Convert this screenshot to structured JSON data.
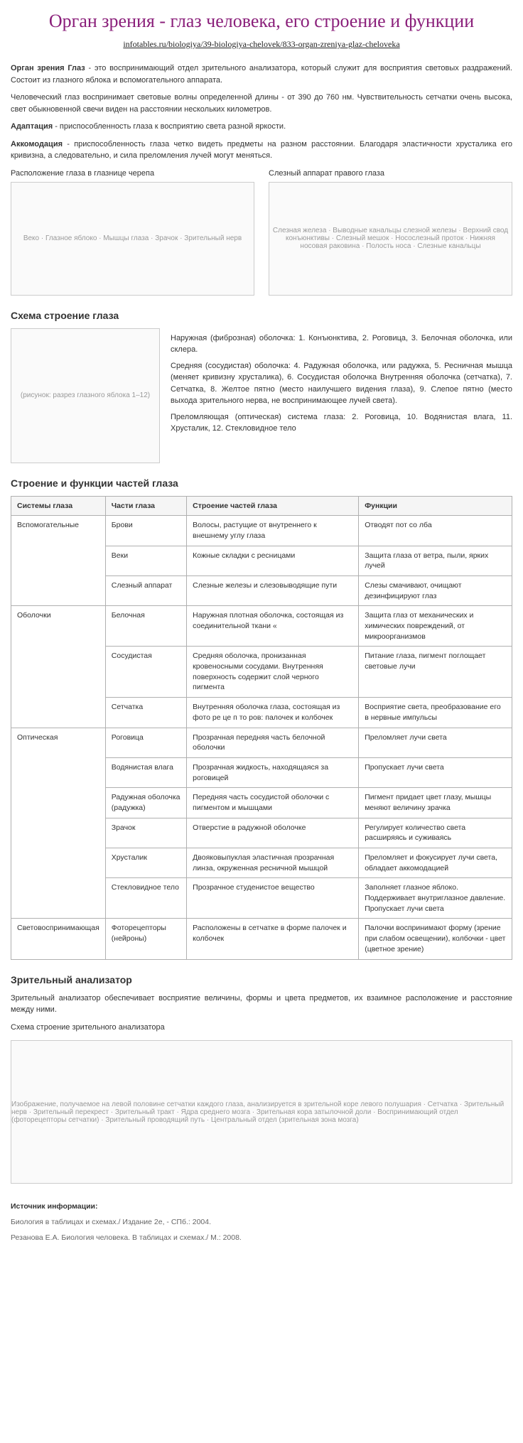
{
  "title": "Орган зрения - глаз человека, его строение и функции",
  "url": "infotables.ru/biologiya/39-biologiya-chelovek/833-organ-zreniya-glaz-cheloveka",
  "intro": {
    "p1b": "Орган зрения Глаз",
    "p1": " - это воспринимающий отдел зрительного анализатора, который служит для восприятия световых раздражений. Состоит из глазного яблока и вспомогательного аппарата.",
    "p2": "Человеческий глаз воспринимает световые волны определенной длины - от 390 до 760 нм. Чувствительность сетчатки очень высока, свет обыкновенной свечи виден на расстоянии нескольких километров.",
    "p3b": "Адаптация",
    "p3": " - приспособленность глаза к восприятию света разной яркости.",
    "p4b": "Аккомодация",
    "p4": " - приспособленность глаза четко видеть предметы на разном расстоянии. Благодаря эластичности хрусталика его кривизна, а следовательно, и сила преломления лучей могут меняться."
  },
  "figs": {
    "cap1": "Расположение глаза в глазнице черепа",
    "cap2": "Слезный аппарат правого глаза",
    "ph1": "Веко · Глазное яблоко · Мышцы глаза · Зрачок · Зрительный нерв",
    "ph2": "Слезная железа · Выводные канальцы слезной железы · Верхний свод конъюнктивы · Слезный мешок · Носослезный проток · Нижняя носовая раковина · Полость носа · Слезные канальцы"
  },
  "schema": {
    "heading": "Схема строение глаза",
    "ph": "(рисунок: разрез глазного яблока 1–12)",
    "p1": "Наружная (фиброзная) оболочка:  1. Конъюнктива, 2. Роговица, 3. Белочная оболочка, или склера.",
    "p2": "Средняя (сосудистая) оболочка:  4. Радужная оболочка, или радужка, 5. Ресничная мышца (меняет кривизну хрусталика), 6. Сосудистая оболочка Внутренняя оболочка (сетчатка), 7. Сетчатка, 8. Желтое пятно (место наилучшего видения глаза), 9. Слепое пятно (место выхода зрительного нерва, не воспринимающее лучей света).",
    "p3": "Преломляющая (оптическая) система глаза:  2. Роговица, 10. Водянистая влага, 11. Хрусталик, 12. Стекловидное тело"
  },
  "tableHeading": "Строение и функции частей глаза",
  "table": {
    "columns": [
      "Системы глаза",
      "Части глаза",
      "Строение частей глаза",
      "Функции"
    ],
    "groups": [
      {
        "system": "Вспомогательные",
        "rows": [
          [
            "Брови",
            "Волосы, растущие от внутреннего к внешнему углу глаза",
            "Отводят пот со лба"
          ],
          [
            "Веки",
            "Кожные складки с ресницами",
            "Защита глаза от ветра, пыли, ярких лучей"
          ],
          [
            "Слезный аппарат",
            "Слезные железы и слезовыводящие пути",
            "Слезы смачивают, очищают дезинфицируют глаз"
          ]
        ]
      },
      {
        "system": "Оболочки",
        "rows": [
          [
            "Белочная",
            "Наружная плотная оболочка, состоящая из соединительной ткани «",
            "Защита глаз от механических и химических повреждений, от микроорганизмов"
          ],
          [
            "Сосудистая",
            "Средняя оболочка, пронизанная кровеносными сосудами. Внутренняя поверхность содержит слой черного пигмента",
            "Питание глаза, пигмент поглощает световые лучи"
          ],
          [
            "Сетчатка",
            "Внутренняя оболочка глаза, состоящая из фото ре це п то ров: палочек и колбочек",
            "Восприятие света, преобразование его в нервные импульсы"
          ]
        ]
      },
      {
        "system": "Оптическая",
        "rows": [
          [
            "Роговица",
            "Прозрачная передняя часть белочной оболочки",
            "Преломляет лучи света"
          ],
          [
            "Водянистая влага",
            "Прозрачная жидкость, находящаяся за роговицей",
            "Пропускает лучи света"
          ],
          [
            "Радужная оболочка (радужка)",
            "Передняя часть сосудистой оболочки с пигментом и мышцами",
            "Пигмент придает цвет глазу, мышцы меняют величину зрачка"
          ],
          [
            "Зрачок",
            "Отверстие в радужной оболочке",
            "Регулирует количество света расширяясь и суживаясь"
          ],
          [
            "Хрусталик",
            "Двояковыпуклая эластичная прозрачная линза, окруженная ресничной мышцой",
            "Преломляет и фокусирует лучи света, обладает аккомодацией"
          ],
          [
            "Стекловидное тело",
            "Прозрачное студенистое вещество",
            "Заполняет глазное яблоко. Поддерживает внутриглазное давление. Пропускает лучи света"
          ]
        ]
      },
      {
        "system": "Световоспринимающая",
        "rows": [
          [
            "Фоторецепторы (нейроны)",
            "Расположены в сетчатке в форме палочек и колбочек",
            "Палочки воспринимают форму (зрение при слабом освещении), колбочки - цвет (цветное зрение)"
          ]
        ]
      }
    ]
  },
  "analyzer": {
    "heading": "Зрительный анализатор",
    "p1": "Зрительный анализатор обеспечивает восприятие величины, формы и цвета предметов, их взаимное расположение и расстояние между ними.",
    "cap": "Схема строение зрительного анализатора",
    "ph": "Изображение, получаемое на левой половине сетчатки каждого глаза, анализируется в зрительной коре левого полушария · Сетчатка · Зрительный нерв · Зрительный перекрест · Зрительный тракт · Ядра среднего мозга · Зрительная кора затылочной доли · Воспринимающий отдел (фоторецепторы сетчатки) · Зрительный проводящий путь · Центральный отдел (зрительная зона мозга)"
  },
  "source": {
    "h": "Источник информации:",
    "s1": "Биология в таблицах и схемах./ Издание 2е, - СПб.: 2004.",
    "s2": "Резанова Е.А. Биология человека. В таблицах и схемах./ М.: 2008."
  }
}
